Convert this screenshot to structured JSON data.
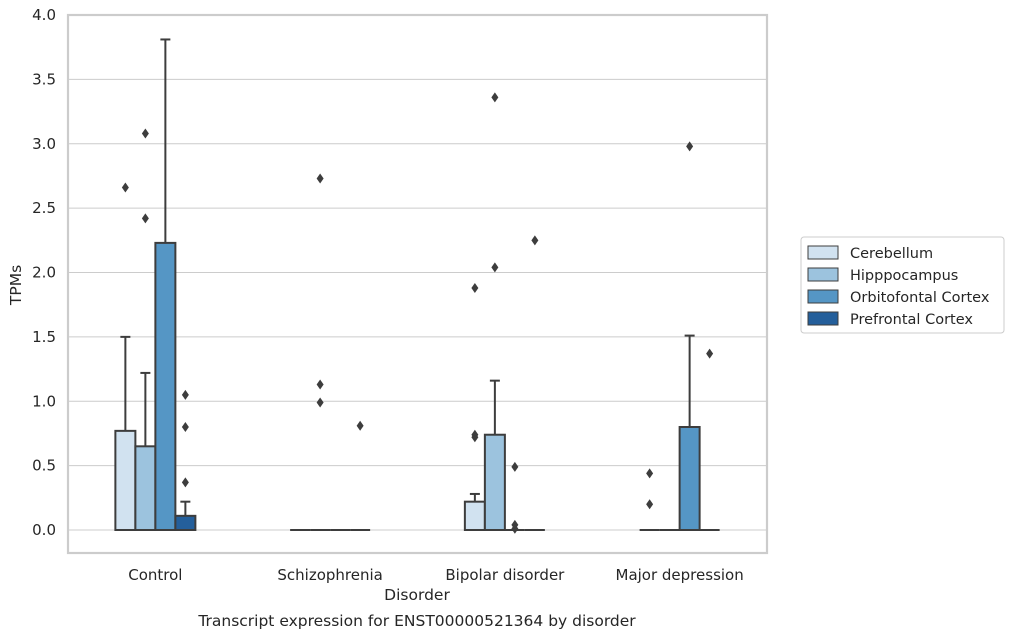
{
  "chart_data": {
    "type": "box",
    "title": "",
    "caption": "Transcript expression for ENST00000521364 by disorder",
    "xlabel": "Disorder",
    "ylabel": "TPMs",
    "ylim": [
      -0.18,
      4.0
    ],
    "yticks": [
      "0.0",
      "0.5",
      "1.0",
      "1.5",
      "2.0",
      "2.5",
      "3.0",
      "3.5",
      "4.0"
    ],
    "grid": true,
    "legend_position": "right",
    "categories": [
      "Control",
      "Schizophrenia",
      "Bipolar disorder",
      "Major depression"
    ],
    "series": [
      {
        "name": "Cerebellum",
        "color": "#d1e2f0",
        "boxes": [
          {
            "q1": 0.0,
            "median": 0.0,
            "q3": 0.77,
            "whisker_low": 0.0,
            "whisker_high": 1.5,
            "outliers": [
              2.66
            ]
          },
          {
            "q1": 0.0,
            "median": 0.0,
            "q3": 0.0,
            "whisker_low": 0.0,
            "whisker_high": 0.0,
            "outliers": []
          },
          {
            "q1": 0.0,
            "median": 0.0,
            "q3": 0.22,
            "whisker_low": 0.0,
            "whisker_high": 0.28,
            "outliers": [
              1.88,
              0.72,
              0.74
            ]
          },
          {
            "q1": 0.0,
            "median": 0.0,
            "q3": 0.0,
            "whisker_low": 0.0,
            "whisker_high": 0.0,
            "outliers": [
              0.44,
              0.2
            ]
          }
        ]
      },
      {
        "name": "Hipppocampus",
        "color": "#9cc3de",
        "boxes": [
          {
            "q1": 0.0,
            "median": 0.0,
            "q3": 0.65,
            "whisker_low": 0.0,
            "whisker_high": 1.22,
            "outliers": [
              3.08,
              2.42
            ]
          },
          {
            "q1": 0.0,
            "median": 0.0,
            "q3": 0.0,
            "whisker_low": 0.0,
            "whisker_high": 0.0,
            "outliers": [
              2.73,
              1.13,
              0.99
            ]
          },
          {
            "q1": 0.0,
            "median": 0.0,
            "q3": 0.74,
            "whisker_low": 0.0,
            "whisker_high": 1.16,
            "outliers": [
              3.36,
              2.04
            ]
          },
          {
            "q1": 0.0,
            "median": 0.0,
            "q3": 0.0,
            "whisker_low": 0.0,
            "whisker_high": 0.0,
            "outliers": []
          }
        ]
      },
      {
        "name": "Orbitofontal Cortex",
        "color": "#5596c5",
        "boxes": [
          {
            "q1": 0.0,
            "median": 0.0,
            "q3": 2.23,
            "whisker_low": 0.0,
            "whisker_high": 3.81,
            "outliers": []
          },
          {
            "q1": 0.0,
            "median": 0.0,
            "q3": 0.0,
            "whisker_low": 0.0,
            "whisker_high": 0.0,
            "outliers": []
          },
          {
            "q1": 0.0,
            "median": 0.0,
            "q3": 0.0,
            "whisker_low": 0.0,
            "whisker_high": 0.0,
            "outliers": [
              0.49,
              0.04,
              0.01
            ]
          },
          {
            "q1": 0.0,
            "median": 0.0,
            "q3": 0.8,
            "whisker_low": 0.0,
            "whisker_high": 1.51,
            "outliers": [
              2.98
            ]
          }
        ]
      },
      {
        "name": "Prefrontal Cortex",
        "color": "#245f9b",
        "boxes": [
          {
            "q1": 0.0,
            "median": 0.0,
            "q3": 0.11,
            "whisker_low": 0.0,
            "whisker_high": 0.22,
            "outliers": [
              1.05,
              0.8,
              0.37
            ]
          },
          {
            "q1": 0.0,
            "median": 0.0,
            "q3": 0.0,
            "whisker_low": 0.0,
            "whisker_high": 0.0,
            "outliers": [
              0.81
            ]
          },
          {
            "q1": 0.0,
            "median": 0.0,
            "q3": 0.0,
            "whisker_low": 0.0,
            "whisker_high": 0.0,
            "outliers": [
              2.25
            ]
          },
          {
            "q1": 0.0,
            "median": 0.0,
            "q3": 0.0,
            "whisker_low": 0.0,
            "whisker_high": 0.0,
            "outliers": [
              1.37
            ]
          }
        ]
      }
    ]
  }
}
